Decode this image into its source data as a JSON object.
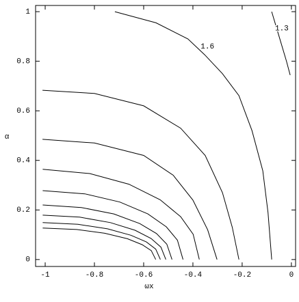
{
  "chart_data": {
    "type": "contour",
    "x_label": "ωx",
    "y_label": "α",
    "xlim": [
      -1.039,
      0.017
    ],
    "ylim": [
      -0.028,
      1.025
    ],
    "xticks": [
      -1,
      -0.8,
      -0.6,
      -0.4,
      -0.2,
      0
    ],
    "yticks": [
      0,
      0.2,
      0.4,
      0.6,
      0.8,
      1
    ],
    "color": "#000000",
    "lines": [
      {
        "label": "1.3",
        "x": [
          -0.08,
          -0.05,
          -0.02,
          -0.005
        ],
        "y": [
          1.0,
          0.9,
          0.8,
          0.744
        ]
      },
      {
        "label": "1.6",
        "x": [
          -0.717,
          -0.55,
          -0.42,
          -0.352,
          -0.28,
          -0.213,
          -0.16,
          -0.116,
          -0.095,
          -0.08
        ],
        "y": [
          1.0,
          0.955,
          0.89,
          0.826,
          0.75,
          0.661,
          0.52,
          0.358,
          0.19,
          0.0
        ]
      },
      {
        "x": [
          -1.011,
          -0.8,
          -0.6,
          -0.45,
          -0.35,
          -0.28,
          -0.24,
          -0.213
        ],
        "y": [
          0.683,
          0.67,
          0.62,
          0.53,
          0.42,
          0.27,
          0.13,
          0.0
        ]
      },
      {
        "x": [
          -1.011,
          -0.8,
          -0.6,
          -0.48,
          -0.4,
          -0.34,
          -0.302
        ],
        "y": [
          0.485,
          0.47,
          0.42,
          0.34,
          0.24,
          0.12,
          0.0
        ]
      },
      {
        "x": [
          -1.01,
          -0.819,
          -0.66,
          -0.533,
          -0.45,
          -0.399,
          -0.374
        ],
        "y": [
          0.364,
          0.347,
          0.304,
          0.241,
          0.173,
          0.102,
          0.0
        ]
      },
      {
        "x": [
          -1.01,
          -0.839,
          -0.697,
          -0.583,
          -0.508,
          -0.463,
          -0.44
        ],
        "y": [
          0.278,
          0.265,
          0.232,
          0.184,
          0.132,
          0.078,
          0.0
        ]
      },
      {
        "x": [
          -1.01,
          -0.853,
          -0.721,
          -0.616,
          -0.548,
          -0.506,
          -0.485
        ],
        "y": [
          0.22,
          0.21,
          0.184,
          0.145,
          0.105,
          0.062,
          0.0
        ]
      },
      {
        "x": [
          -1.01,
          -0.86,
          -0.735,
          -0.635,
          -0.57,
          -0.53,
          -0.51
        ],
        "y": [
          0.179,
          0.171,
          0.149,
          0.118,
          0.085,
          0.05,
          0.0
        ]
      },
      {
        "x": [
          -1.01,
          -0.867,
          -0.747,
          -0.652,
          -0.589,
          -0.551,
          -0.532
        ],
        "y": [
          0.149,
          0.142,
          0.124,
          0.098,
          0.071,
          0.042,
          0.0
        ]
      },
      {
        "x": [
          -1.01,
          -0.872,
          -0.758,
          -0.666,
          -0.606,
          -0.569,
          -0.551
        ],
        "y": [
          0.127,
          0.121,
          0.106,
          0.084,
          0.06,
          0.036,
          0.0
        ]
      }
    ]
  }
}
